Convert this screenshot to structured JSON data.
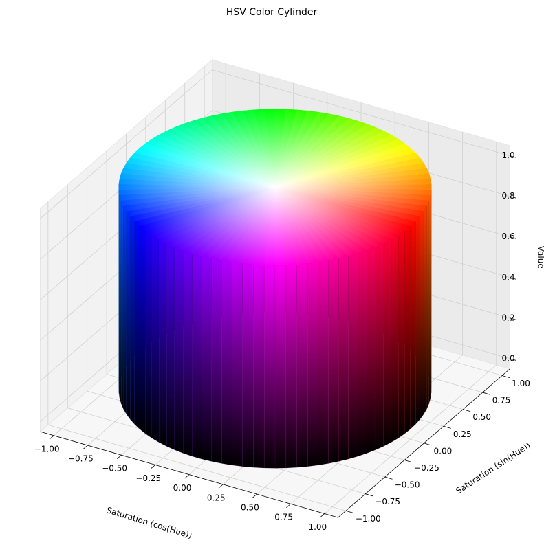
{
  "chart_data": {
    "type": "cylinder3d",
    "title": "HSV Color Cylinder",
    "xlabel": "Saturation (cos(Hue))",
    "ylabel": "Saturation (sin(Hue))",
    "zlabel": "Value",
    "cylinder": {
      "radius": 1,
      "height": 1
    },
    "xlim": [
      -1.1,
      1.1
    ],
    "ylim": [
      -1.1,
      1.1
    ],
    "zlim": [
      -0.05,
      1.05
    ],
    "xticks": [
      {
        "value": -1,
        "label": "−1.00"
      },
      {
        "value": -0.75,
        "label": "−0.75"
      },
      {
        "value": -0.5,
        "label": "−0.50"
      },
      {
        "value": -0.25,
        "label": "−0.25"
      },
      {
        "value": 0,
        "label": "0.00"
      },
      {
        "value": 0.25,
        "label": "0.25"
      },
      {
        "value": 0.5,
        "label": "0.50"
      },
      {
        "value": 0.75,
        "label": "0.75"
      },
      {
        "value": 1,
        "label": "1.00"
      }
    ],
    "yticks": [
      {
        "value": -1,
        "label": "−1.00"
      },
      {
        "value": -0.75,
        "label": "−0.75"
      },
      {
        "value": -0.5,
        "label": "−0.50"
      },
      {
        "value": -0.25,
        "label": "−0.25"
      },
      {
        "value": 0,
        "label": "0.00"
      },
      {
        "value": 0.25,
        "label": "0.25"
      },
      {
        "value": 0.5,
        "label": "0.50"
      },
      {
        "value": 0.75,
        "label": "0.75"
      },
      {
        "value": 1,
        "label": "1.00"
      }
    ],
    "zticks": [
      {
        "value": 0,
        "label": "0.0"
      },
      {
        "value": 0.2,
        "label": "0.2"
      },
      {
        "value": 0.4,
        "label": "0.4"
      },
      {
        "value": 0.6,
        "label": "0.6"
      },
      {
        "value": 0.8,
        "label": "0.8"
      },
      {
        "value": 1,
        "label": "1.0"
      }
    ],
    "grid": true
  }
}
